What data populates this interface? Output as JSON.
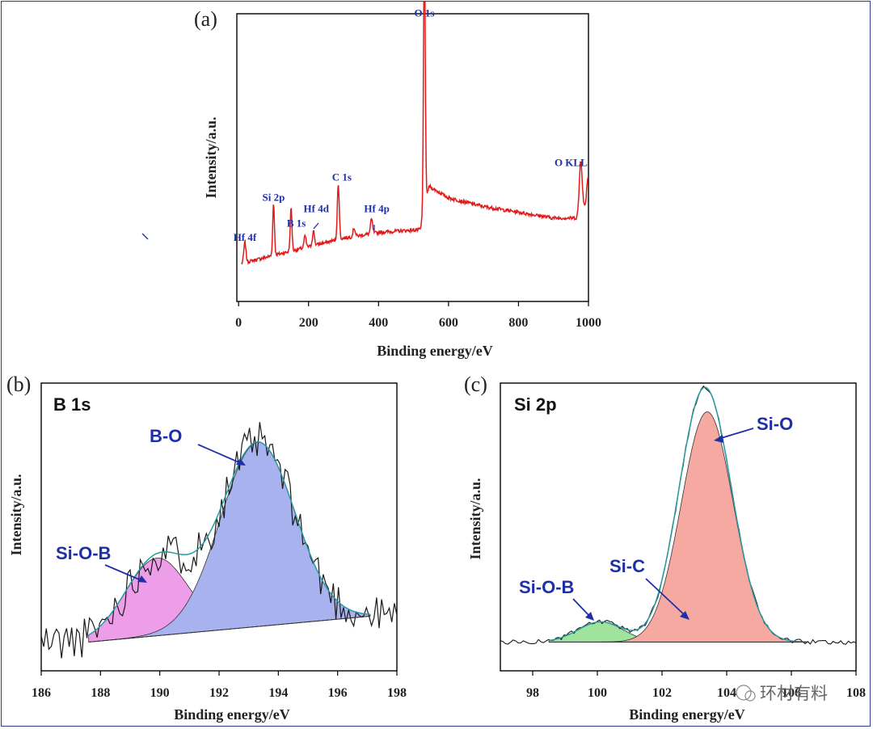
{
  "colors": {
    "frame": "#2e3c88",
    "survey_line": "#e01b1b",
    "label_blue": "#1f2fa8",
    "raw_line": "#1a1a1a",
    "envelope": "#2a9aa0",
    "b_sioB_fill": "#ee9ee8",
    "b_bo_fill": "#a8b2ef",
    "si_sioB_fill": "#9fe39c",
    "si_sic_fill": "#f6eaa0",
    "si_sio_fill": "#f6a9a1"
  },
  "watermark": "环材有料",
  "chart_data": [
    {
      "id": "a",
      "type": "line",
      "panel_label": "(a)",
      "title": "",
      "xlabel": "Binding energy/eV",
      "ylabel": "Intensity/a.u.",
      "xlim": [
        -5,
        1000
      ],
      "ylim": [
        0,
        100
      ],
      "xticks": [
        0,
        200,
        400,
        600,
        800,
        1000
      ],
      "tick_labels": [
        "0",
        "200",
        "400",
        "600",
        "800",
        "1000"
      ],
      "y_ticks_shown": false,
      "series": [
        {
          "name": "survey",
          "baseline": [
            [
              0,
              13
            ],
            [
              100,
              16
            ],
            [
              200,
              19
            ],
            [
              300,
              22
            ],
            [
              400,
              24
            ],
            [
              520,
              25
            ],
            [
              532,
              35
            ],
            [
              545,
              40
            ],
            [
              600,
              36
            ],
            [
              700,
              33
            ],
            [
              800,
              31
            ],
            [
              900,
              29
            ],
            [
              965,
              29
            ],
            [
              990,
              33
            ],
            [
              1000,
              38
            ]
          ],
          "peaks": [
            [
              18,
              7,
              3
            ],
            [
              100,
              18,
              2.5
            ],
            [
              150,
              15,
              2.5
            ],
            [
              190,
              4,
              3
            ],
            [
              214,
              5,
              3
            ],
            [
              285,
              19,
              2.8
            ],
            [
              330,
              3,
              3
            ],
            [
              380,
              5,
              3
            ],
            [
              531,
              92,
              2.4
            ],
            [
              978,
              18,
              4
            ],
            [
              998,
              6,
              3
            ]
          ],
          "noise_amplitude": 0.6
        }
      ],
      "annotations": [
        {
          "text": "Hf 4f",
          "x": 18,
          "y": 21
        },
        {
          "text": "Si 2p",
          "x": 100,
          "y": 35
        },
        {
          "text": "B 1s",
          "x": 165,
          "y": 26
        },
        {
          "text": "Hf 4d",
          "x": 222,
          "y": 31
        },
        {
          "text": "C 1s",
          "x": 295,
          "y": 42
        },
        {
          "text": "Hf 4p",
          "x": 395,
          "y": 31
        },
        {
          "text": "O 1s",
          "x": 531,
          "y": 99
        },
        {
          "text": "O KLL",
          "x": 950,
          "y": 47
        }
      ]
    },
    {
      "id": "b",
      "type": "area",
      "panel_label": "(b)",
      "title": "B 1s",
      "xlabel": "Binding energy/eV",
      "ylabel": "Intensity/a.u.",
      "xlim": [
        186,
        198
      ],
      "ylim": [
        0,
        100
      ],
      "xticks": [
        186,
        188,
        190,
        192,
        194,
        196,
        198
      ],
      "tick_labels": [
        "186",
        "188",
        "190",
        "192",
        "194",
        "196",
        "198"
      ],
      "y_ticks_shown": false,
      "fit_range": [
        187.6,
        197.1
      ],
      "background": {
        "start": [
          187.6,
          10
        ],
        "end": [
          197.1,
          19
        ]
      },
      "components": [
        {
          "name": "Si-O-B",
          "center": 189.9,
          "height": 27,
          "sigma": 1.05
        },
        {
          "name": "B-O",
          "center": 193.3,
          "height": 64,
          "sigma": 1.25
        }
      ],
      "raw_range": [
        186,
        198
      ],
      "raw_noise_amplitude": 7
    },
    {
      "id": "c",
      "type": "area",
      "panel_label": "(c)",
      "title": "Si 2p",
      "xlabel": "Binding energy/eV",
      "ylabel": "Intensity/a.u.",
      "xlim": [
        97,
        108
      ],
      "ylim": [
        0,
        100
      ],
      "xticks": [
        98,
        100,
        102,
        104,
        106,
        108
      ],
      "tick_labels": [
        "98",
        "100",
        "102",
        "104",
        "106",
        "108"
      ],
      "y_ticks_shown": false,
      "fit_range": [
        98.5,
        106.5
      ],
      "background": {
        "start": [
          98.5,
          10
        ],
        "end": [
          106.5,
          10
        ]
      },
      "components": [
        {
          "name": "Si-O-B",
          "center": 100.1,
          "height": 7,
          "sigma": 0.7
        },
        {
          "name": "Si-C",
          "center": 102.9,
          "height": 11,
          "sigma": 0.65
        },
        {
          "name": "Si-O",
          "center": 103.4,
          "height": 80,
          "sigma": 0.8
        }
      ],
      "raw_range": [
        97,
        108
      ],
      "raw_noise_amplitude": 0.8
    }
  ]
}
